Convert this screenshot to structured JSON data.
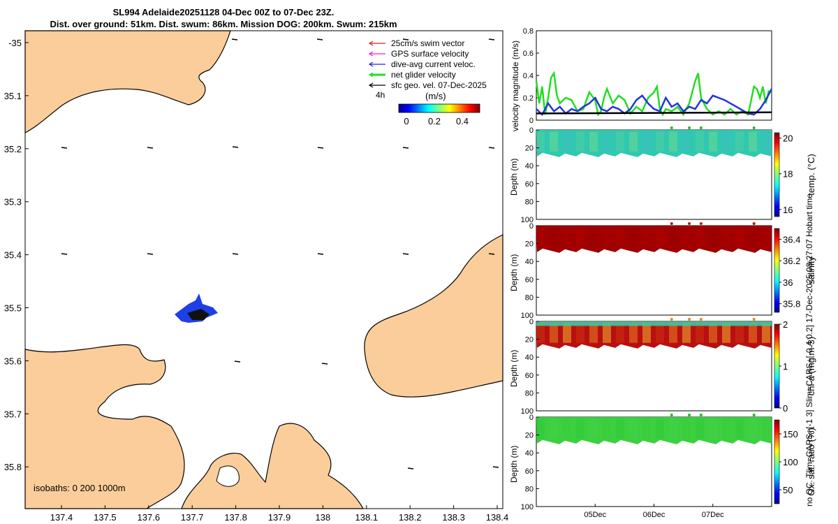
{
  "title": {
    "line1": "SL994 Adelaide20251128 04-Dec 00Z to 07-Dec 23Z.",
    "line2": "Dist. over ground: 51km. Dist. swum: 86km. Mission DOG: 200km. Swum: 215km"
  },
  "map": {
    "lon_ticks": [
      "137.4",
      "137.5",
      "137.6",
      "137.7",
      "137.8",
      "137.9",
      "138",
      "138.1",
      "138.2",
      "138.3",
      "138.4"
    ],
    "lat_ticks": [
      "-35",
      "35.1",
      "35.2",
      "35.3",
      "35.4",
      "35.5",
      "35.6",
      "35.7",
      "35.8"
    ],
    "legend": [
      "25cm/s swim vector",
      "GPS surface velocity",
      "dive-avg current veloc.",
      "net glider velocity",
      "sfc geo. vel. 07-Dec-2025"
    ],
    "legend_colors": [
      "#e02020",
      "#e020e0",
      "#2020e0",
      "#20e020",
      "#000000"
    ],
    "time_label": "4h",
    "colorbar_label": "(m/s)",
    "colorbar_ticks": [
      "0",
      "0.2",
      "0.4"
    ],
    "isobaths": "isobaths: 0   200  1000m",
    "land_color": "#fbcd9b"
  },
  "chart_data": [
    {
      "type": "line",
      "title": "",
      "ylabel": "velocity magnitude (m/s)",
      "ylim": [
        0,
        0.8
      ],
      "yticks": [
        "0",
        "0.2",
        "0.4",
        "0.6",
        "0.8"
      ],
      "x_days": [
        4.0,
        8.0
      ],
      "series": [
        {
          "name": "net glider velocity",
          "color": "#22dd22",
          "x": [
            4.0,
            4.05,
            4.1,
            4.15,
            4.2,
            4.25,
            4.3,
            4.35,
            4.4,
            4.5,
            4.6,
            4.7,
            4.8,
            4.9,
            5.0,
            5.05,
            5.1,
            5.15,
            5.2,
            5.3,
            5.4,
            5.5,
            5.6,
            5.7,
            5.8,
            5.9,
            6.0,
            6.05,
            6.1,
            6.15,
            6.2,
            6.3,
            6.4,
            6.5,
            6.6,
            6.7,
            6.75,
            6.8,
            6.9,
            7.0,
            7.1,
            7.2,
            7.3,
            7.4,
            7.5,
            7.6,
            7.7,
            7.75,
            7.8,
            7.85,
            7.9,
            7.95,
            8.0
          ],
          "y": [
            0.35,
            0.15,
            0.3,
            0.05,
            0.2,
            0.38,
            0.42,
            0.22,
            0.15,
            0.2,
            0.18,
            0.08,
            0.1,
            0.25,
            0.18,
            0.05,
            0.08,
            0.2,
            0.28,
            0.15,
            0.22,
            0.18,
            0.06,
            0.12,
            0.08,
            0.2,
            0.25,
            0.3,
            0.1,
            0.05,
            0.1,
            0.08,
            0.12,
            0.05,
            0.15,
            0.35,
            0.42,
            0.2,
            0.1,
            0.05,
            0.08,
            0.05,
            0.1,
            0.05,
            0.08,
            0.05,
            0.3,
            0.28,
            0.2,
            0.3,
            0.15,
            0.26,
            0.25
          ]
        },
        {
          "name": "dive-avg current veloc.",
          "color": "#2233dd",
          "x": [
            4.0,
            4.1,
            4.2,
            4.3,
            4.4,
            4.5,
            4.6,
            4.7,
            4.8,
            4.9,
            5.0,
            5.1,
            5.2,
            5.3,
            5.4,
            5.5,
            5.6,
            5.7,
            5.8,
            5.9,
            6.0,
            6.1,
            6.2,
            6.3,
            6.4,
            6.5,
            6.6,
            6.7,
            6.8,
            6.9,
            7.0,
            7.2,
            7.4,
            7.6,
            7.7,
            7.8,
            7.9,
            8.0
          ],
          "y": [
            0.1,
            0.05,
            0.15,
            0.08,
            0.12,
            0.06,
            0.1,
            0.08,
            0.12,
            0.15,
            0.2,
            0.1,
            0.08,
            0.12,
            0.1,
            0.06,
            0.1,
            0.18,
            0.22,
            0.15,
            0.1,
            0.08,
            0.2,
            0.12,
            0.15,
            0.08,
            0.12,
            0.1,
            0.18,
            0.15,
            0.22,
            0.18,
            0.12,
            0.06,
            0.05,
            0.1,
            0.18,
            0.28
          ]
        },
        {
          "name": "sfc geo. vel.",
          "color": "#000000",
          "x": [
            4.0,
            8.0
          ],
          "y": [
            0.06,
            0.07
          ]
        }
      ]
    },
    {
      "type": "heatmap",
      "ylabel": "Depth (m)",
      "ylim": [
        0,
        100
      ],
      "yticks": [
        "0",
        "20",
        "40",
        "60",
        "80",
        "100"
      ],
      "colorbar_label": "temp. (°C)",
      "clim": [
        15.6,
        20.3
      ],
      "colorbar_ticks": [
        "16",
        "18",
        "20"
      ],
      "profile_depth_m": 28,
      "value_description": "approx 17.5-18",
      "surface_marker_days": [
        6.3,
        6.6,
        6.8,
        7.7
      ],
      "marker_color": "#22bb22"
    },
    {
      "type": "heatmap",
      "ylabel": "Depth (m)",
      "ylim": [
        0,
        100
      ],
      "yticks": [
        "0",
        "20",
        "40",
        "60",
        "80",
        "100"
      ],
      "colorbar_label": "salinity",
      "clim": [
        35.72,
        36.5
      ],
      "colorbar_ticks": [
        "35.8",
        "36",
        "36.2",
        "36.4"
      ],
      "profile_depth_m": 28,
      "value_description": "above 36.4",
      "surface_marker_days": [
        6.3,
        6.6,
        6.8,
        7.7
      ],
      "marker_color": "#aa2211"
    },
    {
      "type": "heatmap",
      "ylabel": "Depth (m)",
      "ylim": [
        0,
        100
      ],
      "yticks": [
        "0",
        "20",
        "40",
        "60",
        "80",
        "100"
      ],
      "colorbar_label": "chl-a (mg m-3)",
      "clim": [
        0,
        2
      ],
      "colorbar_ticks": [
        "0",
        "1",
        "2"
      ],
      "profile_depth_m": 28,
      "value_description": "surface low, 1.5-2 below",
      "surface_marker_days": [
        6.3,
        6.6,
        6.8,
        7.7
      ],
      "marker_color": "#dd8822"
    },
    {
      "type": "heatmap",
      "ylabel": "Depth (m)",
      "ylim": [
        0,
        100
      ],
      "yticks": [
        "0",
        "20",
        "40",
        "60",
        "80",
        "100"
      ],
      "colorbar_label": "Ox. sat. ratio (%)",
      "clim": [
        25,
        175
      ],
      "colorbar_ticks": [
        "50",
        "100",
        "150"
      ],
      "profile_depth_m": 28,
      "value_description": "approx 115-125",
      "surface_marker_days": [
        6.3,
        6.6,
        6.8,
        7.7
      ],
      "marker_color": "#22bb22"
    }
  ],
  "time_axis": {
    "ticks": [
      "05Dec",
      "06Dec",
      "07Dec"
    ]
  },
  "side_label": "no QC. Tlim=CARS+[-1 3] Slim=CARS+[-0.4 0.2] 17-Dec-2025 08:27:07 Hobart time"
}
